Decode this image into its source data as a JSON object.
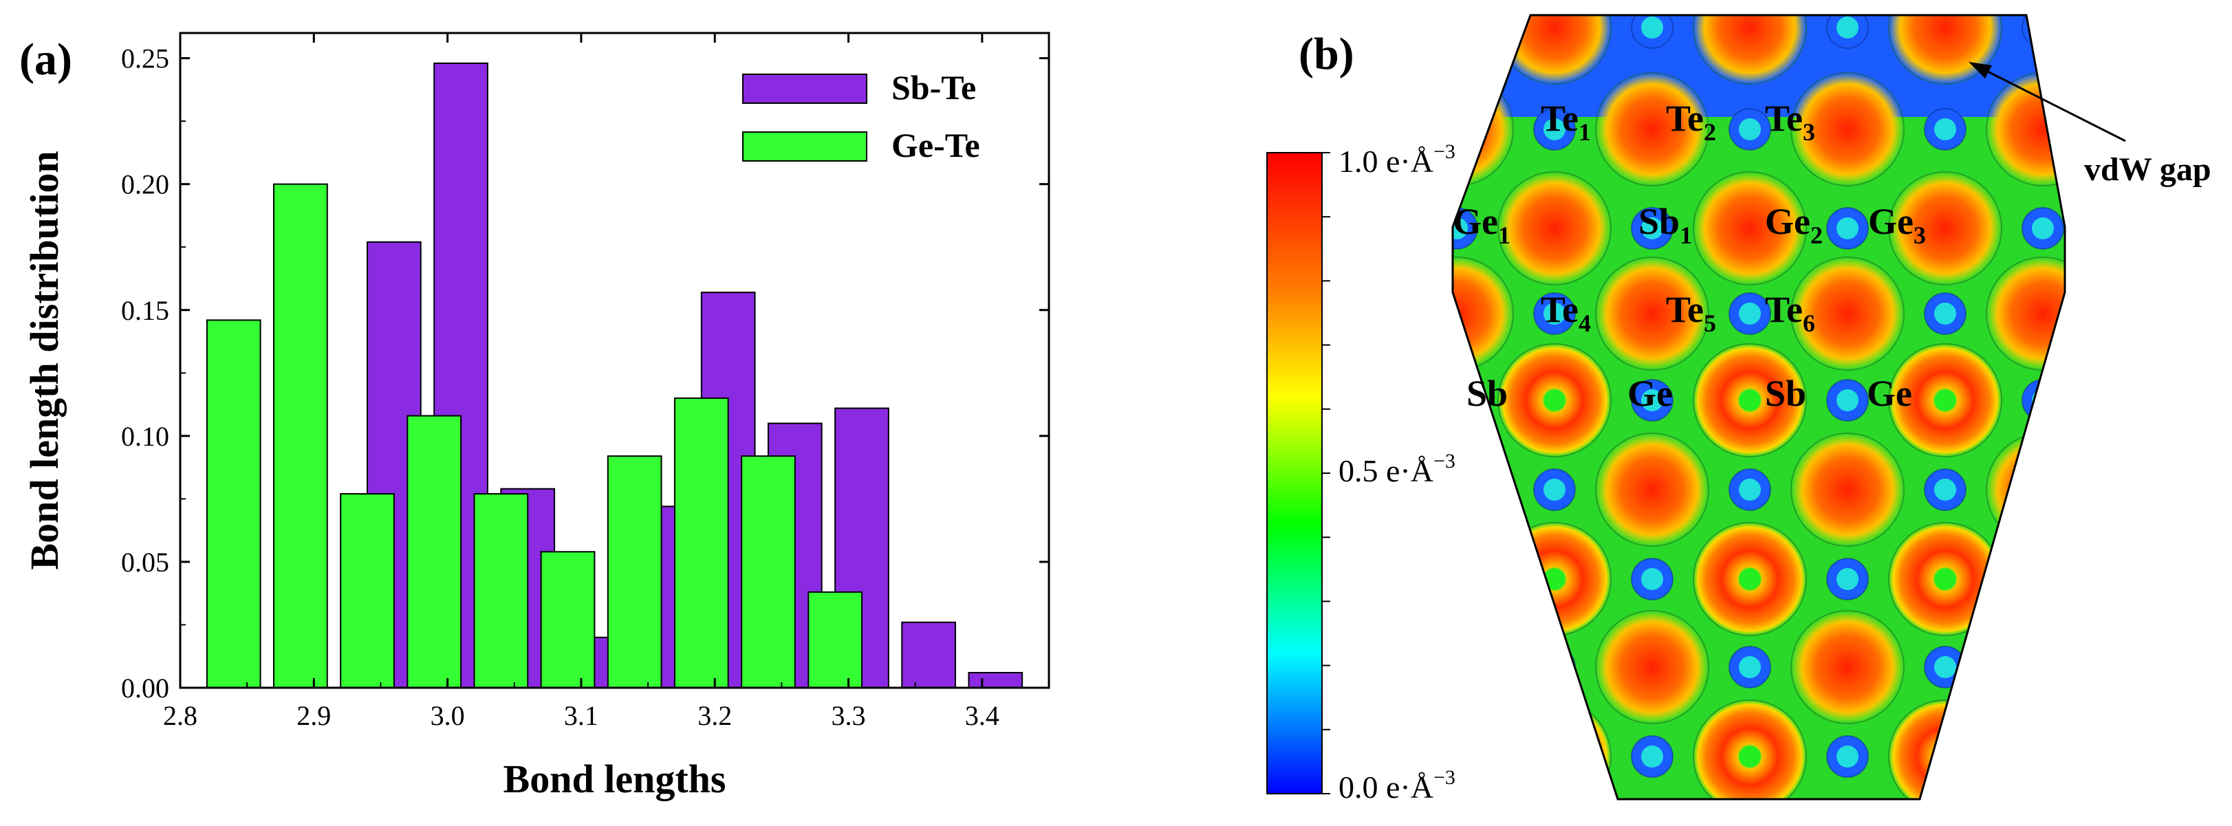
{
  "figure": {
    "panel_a_label": "(a)",
    "panel_b_label": "(b)"
  },
  "chart_data": [
    {
      "type": "bar",
      "title": "",
      "xlabel": "Bond lengths",
      "ylabel": "Bond length distribution",
      "xlim": [
        2.8,
        3.45
      ],
      "ylim": [
        0.0,
        0.26
      ],
      "xticks": [
        "2.8",
        "2.9",
        "3.0",
        "3.1",
        "3.2",
        "3.3",
        "3.4"
      ],
      "yticks": [
        "0.00",
        "0.05",
        "0.10",
        "0.15",
        "0.20",
        "0.25"
      ],
      "legend_position": "top-right",
      "series": [
        {
          "name": "Sb-Te",
          "color": "#8a2be2",
          "x": [
            2.96,
            3.01,
            3.06,
            3.11,
            3.16,
            3.21,
            3.26,
            3.31,
            3.36,
            3.41
          ],
          "values": [
            0.177,
            0.248,
            0.079,
            0.02,
            0.072,
            0.157,
            0.105,
            0.111,
            0.026,
            0.006
          ]
        },
        {
          "name": "Ge-Te",
          "color": "#33ff33",
          "x": [
            2.84,
            2.89,
            2.94,
            2.99,
            3.04,
            3.09,
            3.14,
            3.19,
            3.24,
            3.29
          ],
          "values": [
            0.146,
            0.2,
            0.077,
            0.108,
            0.077,
            0.054,
            0.092,
            0.115,
            0.092,
            0.038
          ]
        }
      ]
    },
    {
      "type": "heatmap",
      "title": "",
      "colorbar_labels": [
        "1.0 e·Å",
        "0.5 e·Å",
        "0.0 e·Å"
      ],
      "colorbar_unit_exponent": "−3",
      "colorbar_values": [
        1.0,
        0.5,
        0.0
      ],
      "colorbar_colors": [
        "#ff0000",
        "#ff8000",
        "#ffff00",
        "#00ff00",
        "#00ffff",
        "#0000ff"
      ],
      "atom_labels": [
        {
          "element": "Te",
          "sub": "1"
        },
        {
          "element": "Te",
          "sub": "2"
        },
        {
          "element": "Te",
          "sub": "3"
        },
        {
          "element": "Ge",
          "sub": "1"
        },
        {
          "element": "Sb",
          "sub": "1"
        },
        {
          "element": "Ge",
          "sub": "2"
        },
        {
          "element": "Ge",
          "sub": "3"
        },
        {
          "element": "Te",
          "sub": "4"
        },
        {
          "element": "Te",
          "sub": "5"
        },
        {
          "element": "Te",
          "sub": "6"
        },
        {
          "element": "Sb",
          "sub": ""
        },
        {
          "element": "Ge",
          "sub": ""
        },
        {
          "element": "Sb",
          "sub": ""
        },
        {
          "element": "Ge",
          "sub": ""
        }
      ],
      "annotations": [
        {
          "text": "vdW gap"
        }
      ]
    }
  ]
}
